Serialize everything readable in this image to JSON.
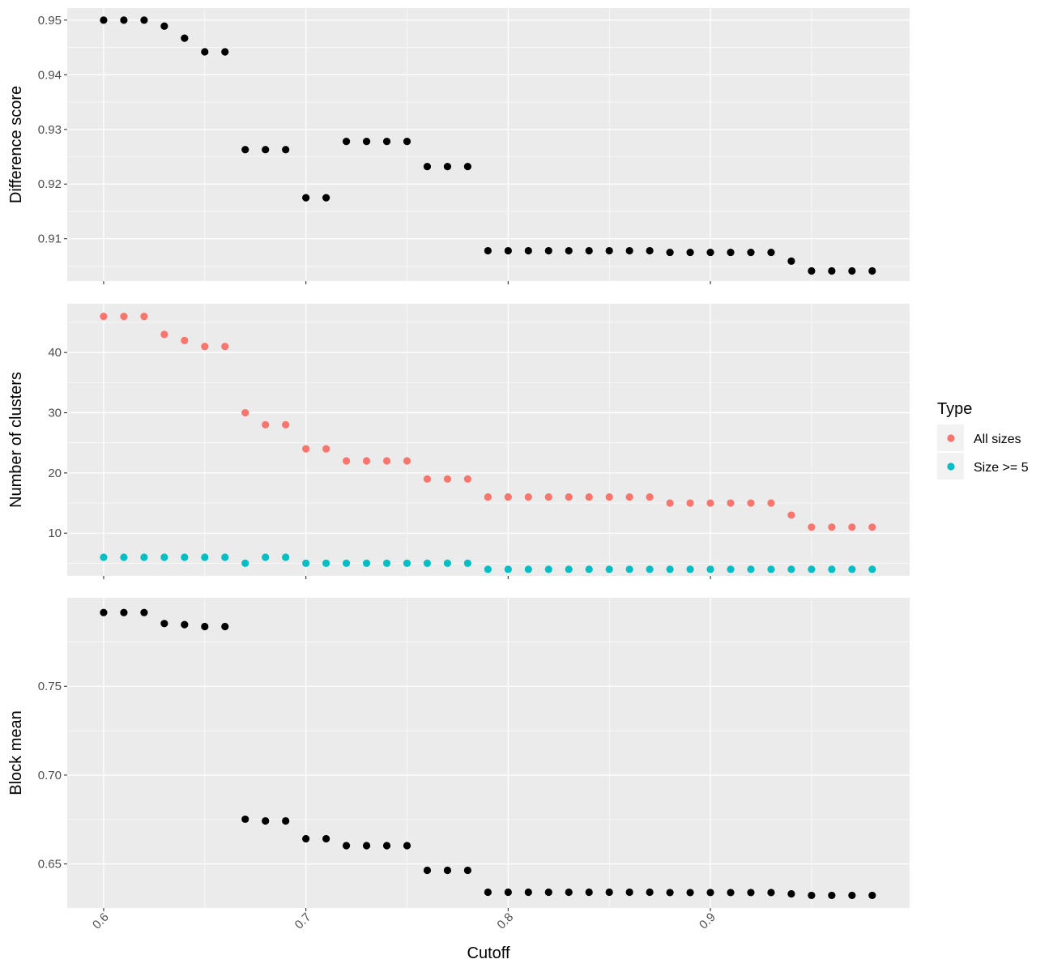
{
  "chart_data": {
    "type": "scatter",
    "xlabel": "Cutoff",
    "x": [
      0.6,
      0.61,
      0.62,
      0.63,
      0.64,
      0.65,
      0.66,
      0.67,
      0.68,
      0.69,
      0.7,
      0.71,
      0.72,
      0.73,
      0.74,
      0.75,
      0.76,
      0.77,
      0.78,
      0.79,
      0.8,
      0.81,
      0.82,
      0.83,
      0.84,
      0.85,
      0.86,
      0.87,
      0.88,
      0.89,
      0.9,
      0.91,
      0.92,
      0.93,
      0.94,
      0.95,
      0.96,
      0.97,
      0.98
    ],
    "xlim": [
      0.582,
      0.9985
    ],
    "xticks": [
      0.6,
      0.7,
      0.8,
      0.9
    ],
    "xtick_labels": [
      "0.6",
      "0.7",
      "0.8",
      "0.9"
    ],
    "grid": true,
    "panel_background": "#ebebeb",
    "grid_color": "#ffffff",
    "panels": [
      {
        "ylabel": "Difference score",
        "ylim": [
          0.90225,
          0.9522
        ],
        "yticks": [
          0.91,
          0.92,
          0.93,
          0.94,
          0.95
        ],
        "ytick_labels": [
          "0.91",
          "0.92",
          "0.93",
          "0.94",
          "0.95"
        ],
        "series": [
          {
            "color": "#000000",
            "values": [
              0.95,
              0.95,
              0.95,
              0.9489,
              0.9467,
              0.9442,
              0.9442,
              0.9263,
              0.9263,
              0.9263,
              0.9175,
              0.9175,
              0.9278,
              0.9278,
              0.9278,
              0.9278,
              0.9232,
              0.9232,
              0.9232,
              0.9078,
              0.9078,
              0.9078,
              0.9078,
              0.9078,
              0.9078,
              0.9078,
              0.9078,
              0.9078,
              0.9075,
              0.9075,
              0.9075,
              0.9075,
              0.9075,
              0.9075,
              0.9059,
              0.9041,
              0.9041,
              0.9041,
              0.9041
            ]
          }
        ]
      },
      {
        "ylabel": "Number of clusters",
        "ylim": [
          2.9,
          48.1
        ],
        "yticks": [
          10,
          20,
          30,
          40
        ],
        "ytick_labels": [
          "10",
          "20",
          "30",
          "40"
        ],
        "series": [
          {
            "name": "All sizes",
            "color": "#F8766D",
            "values": [
              46,
              46,
              46,
              43,
              42,
              41,
              41,
              30,
              28,
              28,
              24,
              24,
              22,
              22,
              22,
              22,
              19,
              19,
              19,
              16,
              16,
              16,
              16,
              16,
              16,
              16,
              16,
              16,
              15,
              15,
              15,
              15,
              15,
              15,
              13,
              11,
              11,
              11,
              11
            ]
          },
          {
            "name": "Size >= 5",
            "color": "#00BFC4",
            "values": [
              6,
              6,
              6,
              6,
              6,
              6,
              6,
              5,
              6,
              6,
              5,
              5,
              5,
              5,
              5,
              5,
              5,
              5,
              5,
              4,
              4,
              4,
              4,
              4,
              4,
              4,
              4,
              4,
              4,
              4,
              4,
              4,
              4,
              4,
              4,
              4,
              4,
              4,
              4
            ]
          }
        ]
      },
      {
        "ylabel": "Block mean",
        "ylim": [
          0.6252,
          0.7998
        ],
        "yticks": [
          0.65,
          0.7,
          0.75
        ],
        "ytick_labels": [
          "0.65",
          "0.70",
          "0.75"
        ],
        "series": [
          {
            "color": "#000000",
            "values": [
              0.7915,
              0.7915,
              0.7915,
              0.7853,
              0.7847,
              0.7836,
              0.7836,
              0.6752,
              0.6742,
              0.6742,
              0.6642,
              0.6642,
              0.6603,
              0.6603,
              0.6603,
              0.6603,
              0.6464,
              0.6464,
              0.6464,
              0.6341,
              0.6341,
              0.6341,
              0.6341,
              0.6341,
              0.6341,
              0.6341,
              0.6341,
              0.6341,
              0.6339,
              0.6339,
              0.6339,
              0.6339,
              0.6339,
              0.6339,
              0.6332,
              0.6323,
              0.6323,
              0.6323,
              0.6323
            ]
          }
        ]
      }
    ],
    "legend": {
      "title": "Type",
      "placement": "right",
      "items": [
        {
          "label": "All sizes",
          "color": "#F8766D"
        },
        {
          "label": "Size >= 5",
          "color": "#00BFC4"
        }
      ]
    }
  }
}
